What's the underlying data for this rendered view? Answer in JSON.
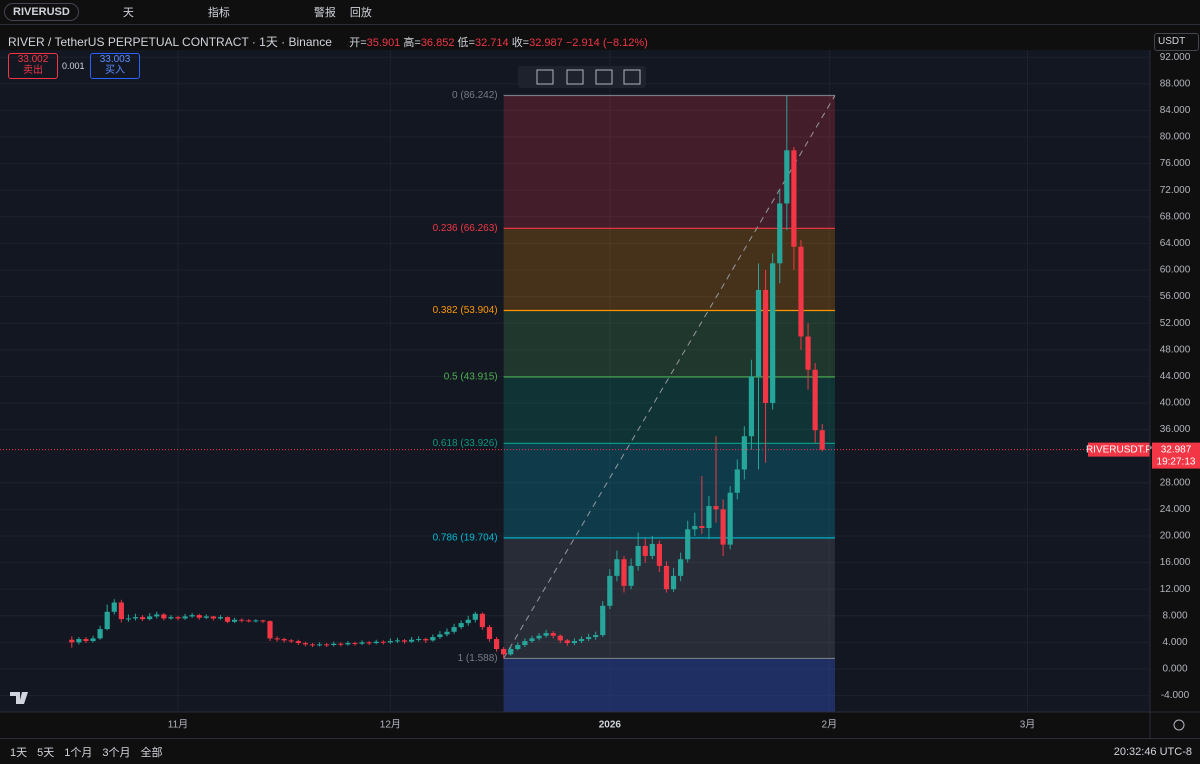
{
  "toolbar": {
    "symbol": "RIVERUSD",
    "interval": "天",
    "indicators": "指标",
    "alert": "警报",
    "replay": "回放"
  },
  "header": {
    "title": "RIVER / TetherUS PERPETUAL CONTRACT · 1天 · Binance",
    "open_label": "开=",
    "high_label": "高=",
    "low_label": "低=",
    "close_label": "收=",
    "change": "−2.914 (−8.12%)"
  },
  "trade": {
    "sell_price": 33.002,
    "sell": "卖出",
    "spread": 0.001,
    "buy_price": 33.003,
    "buy": "买入"
  },
  "currency": "USDT",
  "price_tag": {
    "symbol": "RIVERUSDT.P",
    "countdown": "19:27:13"
  },
  "ranges": [
    "1天",
    "5天",
    "1个月",
    "3个月",
    "全部"
  ],
  "clock": "20:32:46 UTC-8",
  "chart_data": {
    "type": "candlestick",
    "up_color": "#26a69a",
    "down_color": "#f23645",
    "grid": true,
    "xlim": [
      -10.14,
      152.3
    ],
    "xticks": [
      {
        "value": 15,
        "label": "11月"
      },
      {
        "value": 45,
        "label": "12月"
      },
      {
        "value": 76,
        "label": "2026"
      },
      {
        "value": 107,
        "label": "2月"
      },
      {
        "value": 135,
        "label": "3月"
      }
    ],
    "ylim": [
      -6.47,
      93.08
    ],
    "yticks": [
      {
        "value": -4,
        "label": "-4.000"
      },
      {
        "value": 0,
        "label": "0.000"
      },
      {
        "value": 4,
        "label": "4.000"
      },
      {
        "value": 8,
        "label": "8.000"
      },
      {
        "value": 12,
        "label": "12.000"
      },
      {
        "value": 16,
        "label": "16.000"
      },
      {
        "value": 20,
        "label": "20.000"
      },
      {
        "value": 24,
        "label": "24.000"
      },
      {
        "value": 28,
        "label": "28.000"
      },
      {
        "value": 36,
        "label": "36.000"
      },
      {
        "value": 40,
        "label": "40.000"
      },
      {
        "value": 44,
        "label": "44.000"
      },
      {
        "value": 48,
        "label": "48.000"
      },
      {
        "value": 52,
        "label": "52.000"
      },
      {
        "value": 56,
        "label": "56.000"
      },
      {
        "value": 60,
        "label": "60.000"
      },
      {
        "value": 64,
        "label": "64.000"
      },
      {
        "value": 68,
        "label": "68.000"
      },
      {
        "value": 72,
        "label": "72.000"
      },
      {
        "value": 76,
        "label": "76.000"
      },
      {
        "value": 80,
        "label": "80.000"
      },
      {
        "value": 84,
        "label": "84.000"
      },
      {
        "value": 88,
        "label": "88.000"
      },
      {
        "value": 92,
        "label": "92.000"
      }
    ],
    "open": [
      4.4,
      4.0,
      4.5,
      4.2,
      4.6,
      6.0,
      8.6,
      10.0,
      7.5,
      7.6,
      7.8,
      7.5,
      7.9,
      8.2,
      7.6,
      7.8,
      7.6,
      7.9,
      8.1,
      7.7,
      7.9,
      7.6,
      7.8,
      7.1,
      7.4,
      7.3,
      7.2,
      7.3,
      7.2,
      4.6,
      4.5,
      4.3,
      4.2,
      3.9,
      3.7,
      3.6,
      3.7,
      3.6,
      3.8,
      3.7,
      3.9,
      3.8,
      4.0,
      3.9,
      4.1,
      4.0,
      4.2,
      4.3,
      4.1,
      4.4,
      4.5,
      4.3,
      4.8,
      5.2,
      5.6,
      6.3,
      6.9,
      7.4,
      8.3,
      6.3,
      4.5,
      3.0,
      2.2,
      3.0,
      3.6,
      4.2,
      4.6,
      5.0,
      5.4,
      5.0,
      4.3,
      3.9,
      4.2,
      4.5,
      4.8,
      5.1,
      9.5,
      14.0,
      16.5,
      12.5,
      15.5,
      18.5,
      17.0,
      18.8,
      15.5,
      12.0,
      14.0,
      16.5,
      21.0,
      21.5,
      21.2,
      24.5,
      24.0,
      18.7,
      26.5,
      30.0,
      35.0,
      44.0,
      57.0,
      40.0,
      61.0,
      70.0,
      78.0,
      63.5,
      50.0,
      45.0,
      35.901
    ],
    "high": [
      4.9,
      4.8,
      4.8,
      5.0,
      6.5,
      9.7,
      10.5,
      10.4,
      8.2,
      8.3,
      8.1,
      8.4,
      8.6,
      8.4,
      8.1,
      8.0,
      8.3,
      8.4,
      8.3,
      8.2,
      8.0,
      8.1,
      7.9,
      7.7,
      7.6,
      7.5,
      7.5,
      7.4,
      7.3,
      4.9,
      4.7,
      4.5,
      4.4,
      4.1,
      3.9,
      4.0,
      3.9,
      4.1,
      4.0,
      4.2,
      4.1,
      4.3,
      4.2,
      4.4,
      4.3,
      4.6,
      4.7,
      4.5,
      4.8,
      4.9,
      4.7,
      5.2,
      5.7,
      6.1,
      6.8,
      7.3,
      8.0,
      8.6,
      8.5,
      6.6,
      4.8,
      3.3,
      3.4,
      4.0,
      4.6,
      5.0,
      5.4,
      5.9,
      5.7,
      5.2,
      4.5,
      4.6,
      4.9,
      5.3,
      5.6,
      10.2,
      15.0,
      17.8,
      17.0,
      16.6,
      20.5,
      19.6,
      20.0,
      19.3,
      16.2,
      15.2,
      17.5,
      22.3,
      23.5,
      29.0,
      26.0,
      35.0,
      25.5,
      27.5,
      31.5,
      36.5,
      46.5,
      61.0,
      60.0,
      62.5,
      72.0,
      86.242,
      78.5,
      64.5,
      52.0,
      46.0,
      36.852
    ],
    "low": [
      3.2,
      3.7,
      3.9,
      4.0,
      4.4,
      5.8,
      8.2,
      7.0,
      7.1,
      7.3,
      7.2,
      7.3,
      7.6,
      7.3,
      7.4,
      7.3,
      7.4,
      7.7,
      7.4,
      7.5,
      7.3,
      7.4,
      6.9,
      6.9,
      7.0,
      7.0,
      7.0,
      6.9,
      4.2,
      4.1,
      4.0,
      3.9,
      3.6,
      3.4,
      3.3,
      3.4,
      3.3,
      3.4,
      3.4,
      3.5,
      3.5,
      3.6,
      3.6,
      3.7,
      3.7,
      3.8,
      3.9,
      3.8,
      3.9,
      4.1,
      3.9,
      4.1,
      4.5,
      4.9,
      5.3,
      6.0,
      6.5,
      7.0,
      5.9,
      4.1,
      2.6,
      1.588,
      2.0,
      2.8,
      3.3,
      3.9,
      4.3,
      4.7,
      4.6,
      3.9,
      3.5,
      3.6,
      3.9,
      4.2,
      4.4,
      4.8,
      9.0,
      13.2,
      11.5,
      12.0,
      14.8,
      16.0,
      16.5,
      14.6,
      11.5,
      11.6,
      13.2,
      16.0,
      20.0,
      20.3,
      19.5,
      22.0,
      17.0,
      18.0,
      25.5,
      28.5,
      33.0,
      30.0,
      31.0,
      39.0,
      58.0,
      66.0,
      60.0,
      48.0,
      42.0,
      34.0,
      32.714
    ],
    "close": [
      4.0,
      4.5,
      4.2,
      4.6,
      6.0,
      8.6,
      10.0,
      7.5,
      7.6,
      7.8,
      7.5,
      7.9,
      8.2,
      7.6,
      7.8,
      7.6,
      7.9,
      8.1,
      7.7,
      7.9,
      7.6,
      7.8,
      7.1,
      7.4,
      7.3,
      7.2,
      7.3,
      7.2,
      4.6,
      4.5,
      4.3,
      4.2,
      3.9,
      3.7,
      3.6,
      3.7,
      3.6,
      3.8,
      3.7,
      3.9,
      3.8,
      4.0,
      3.9,
      4.1,
      4.0,
      4.2,
      4.3,
      4.1,
      4.4,
      4.5,
      4.3,
      4.8,
      5.2,
      5.6,
      6.3,
      6.9,
      7.4,
      8.3,
      6.3,
      4.5,
      3.0,
      2.2,
      3.0,
      3.6,
      4.2,
      4.6,
      5.0,
      5.4,
      5.0,
      4.3,
      3.9,
      4.2,
      4.5,
      4.8,
      5.1,
      9.5,
      14.0,
      16.5,
      12.5,
      15.5,
      18.5,
      17.0,
      18.8,
      15.5,
      12.0,
      14.0,
      16.5,
      21.0,
      21.5,
      21.2,
      24.5,
      24.0,
      18.7,
      26.5,
      30.0,
      35.0,
      44.0,
      57.0,
      40.0,
      61.0,
      70.0,
      78.0,
      63.5,
      50.0,
      45.0,
      35.9,
      32.987
    ],
    "fib": {
      "x": [
        61,
        107.8
      ],
      "levels": [
        {
          "value": 86.242,
          "label": "0 (86.242)",
          "color": "#787b86"
        },
        {
          "value": 66.263,
          "label": "0.236 (66.263)",
          "color": "#f23645"
        },
        {
          "value": 53.904,
          "label": "0.382 (53.904)",
          "color": "#ff9800"
        },
        {
          "value": 43.915,
          "label": "0.5 (43.915)",
          "color": "#4caf50"
        },
        {
          "value": 33.926,
          "label": "0.618 (33.926)",
          "color": "#089981"
        },
        {
          "value": 19.704,
          "label": "0.786 (19.704)",
          "color": "#00bcd4"
        },
        {
          "value": 1.588,
          "label": "1 (1.588)",
          "color": "#787b86"
        }
      ]
    }
  }
}
